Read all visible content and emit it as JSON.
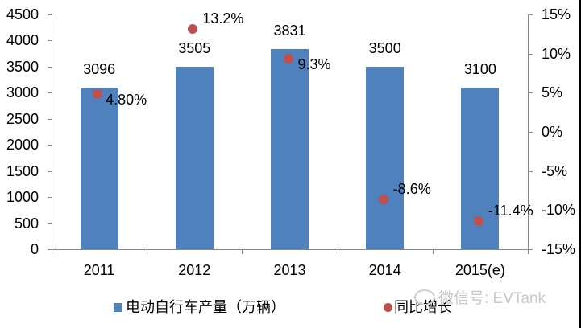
{
  "chart_data": {
    "type": "bar+scatter",
    "title": "",
    "categories": [
      "2011",
      "2012",
      "2013",
      "2014",
      "2015(e)"
    ],
    "series": [
      {
        "name": "电动自行车产量（万辆）",
        "type": "bar",
        "axis": "left",
        "color": "#4f81bd",
        "values": [
          3096,
          3505,
          3831,
          3500,
          3100
        ],
        "labels": [
          "3096",
          "3505",
          "3831",
          "3500",
          "3100"
        ]
      },
      {
        "name": "同比增长",
        "type": "scatter",
        "axis": "right",
        "color": "#c0504d",
        "values": [
          4.8,
          13.2,
          9.3,
          -8.6,
          -11.4
        ],
        "labels": [
          "4.80%",
          "13.2%",
          "9.3%",
          "-8.6%",
          "-11.4%"
        ]
      }
    ],
    "left_axis": {
      "min": 0,
      "max": 4500,
      "step": 500,
      "ticks": [
        "4500",
        "4000",
        "3500",
        "3000",
        "2500",
        "2000",
        "1500",
        "1000",
        "500",
        "0"
      ]
    },
    "right_axis": {
      "min": -15,
      "max": 15,
      "step": 5,
      "ticks": [
        "15%",
        "10%",
        "5%",
        "0%",
        "-5%",
        "-10%",
        "-15%"
      ]
    },
    "grid": false,
    "legend_position": "bottom"
  },
  "legend": {
    "bar_label": "电动自行车产量（万辆）",
    "dot_label": "同比增长"
  },
  "watermark": "微信号: EVTank"
}
